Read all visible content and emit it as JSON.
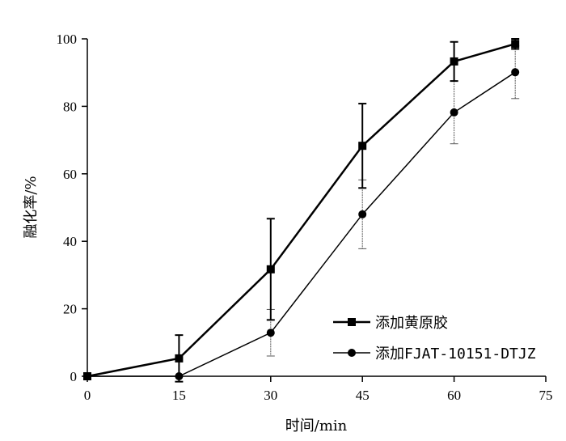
{
  "chart_data": {
    "type": "line",
    "title": "",
    "xlabel": "时间/min",
    "ylabel": "融化率/%",
    "xlim": [
      0,
      75
    ],
    "ylim": [
      0,
      100
    ],
    "xticks": [
      0,
      15,
      30,
      45,
      60,
      75
    ],
    "yticks": [
      0,
      20,
      40,
      60,
      80,
      100
    ],
    "xtick_labels": [
      "0",
      "15",
      "30",
      "45",
      "60",
      "75"
    ],
    "ytick_labels": [
      "0",
      "20",
      "40",
      "60",
      "80",
      "100"
    ],
    "grid": false,
    "legend_position": "bottom-right",
    "series": [
      {
        "name": "添加黄原胶",
        "marker": "square",
        "line": "thick",
        "error_style": "solid",
        "x": [
          0,
          15,
          30,
          45,
          60,
          70
        ],
        "y": [
          0,
          5.3,
          31.7,
          68.3,
          93.3,
          98.5
        ],
        "err": [
          0,
          6.9,
          15.0,
          12.5,
          5.8,
          1.5
        ]
      },
      {
        "name": "添加FJAT-10151-DTJZ",
        "marker": "circle",
        "line": "thin",
        "error_style": "dotted",
        "x": [
          0,
          15,
          30,
          45,
          60,
          70
        ],
        "y": [
          0,
          0,
          12.9,
          48.0,
          78.2,
          90.1
        ],
        "err": [
          0,
          0,
          6.9,
          10.2,
          9.3,
          7.8
        ]
      }
    ]
  }
}
